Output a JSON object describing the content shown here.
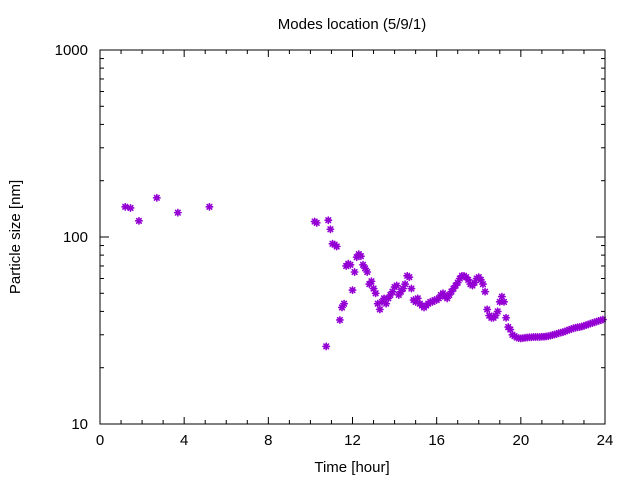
{
  "chart_data": {
    "type": "scatter",
    "title": "Modes location (5/9/1)",
    "xlabel": "Time [hour]",
    "ylabel": "Particle size [nm]",
    "xlim": [
      0,
      24
    ],
    "ylim": [
      10,
      1000
    ],
    "yscale": "log",
    "x_ticks": [
      0,
      4,
      8,
      12,
      16,
      20,
      24
    ],
    "x_tick_labels": [
      "0",
      "4",
      "8",
      "12",
      "16",
      "20",
      "24"
    ],
    "y_ticks": [
      10,
      100,
      1000
    ],
    "y_tick_labels": [
      "10",
      "100",
      "1000"
    ],
    "grid": false,
    "legend": "none",
    "marker": "asterisk",
    "color": "#9400d3",
    "series": [
      {
        "points": [
          [
            1.2,
            145
          ],
          [
            1.45,
            143
          ],
          [
            1.85,
            122
          ],
          [
            2.7,
            162
          ],
          [
            3.7,
            135
          ],
          [
            5.2,
            145
          ],
          [
            10.2,
            121
          ],
          [
            10.3,
            119
          ],
          [
            10.75,
            26
          ],
          [
            10.85,
            123
          ],
          [
            10.95,
            110
          ],
          [
            11.05,
            92
          ],
          [
            11.15,
            91
          ],
          [
            11.25,
            89
          ],
          [
            11.4,
            36
          ],
          [
            11.5,
            42
          ],
          [
            11.6,
            44
          ],
          [
            11.7,
            70
          ],
          [
            11.8,
            72
          ],
          [
            11.9,
            71
          ],
          [
            12.0,
            52
          ],
          [
            12.1,
            65
          ],
          [
            12.2,
            78
          ],
          [
            12.3,
            81
          ],
          [
            12.4,
            79
          ],
          [
            12.5,
            71
          ],
          [
            12.6,
            68
          ],
          [
            12.7,
            65
          ],
          [
            12.8,
            56
          ],
          [
            12.9,
            58
          ],
          [
            13.0,
            53
          ],
          [
            13.1,
            50
          ],
          [
            13.2,
            44
          ],
          [
            13.3,
            41
          ],
          [
            13.4,
            45
          ],
          [
            13.5,
            47
          ],
          [
            13.6,
            44
          ],
          [
            13.7,
            47
          ],
          [
            13.8,
            49
          ],
          [
            13.9,
            51
          ],
          [
            14.0,
            54
          ],
          [
            14.1,
            55
          ],
          [
            14.2,
            49
          ],
          [
            14.3,
            51
          ],
          [
            14.4,
            53
          ],
          [
            14.5,
            56
          ],
          [
            14.6,
            62
          ],
          [
            14.7,
            61
          ],
          [
            14.8,
            53
          ],
          [
            14.9,
            46
          ],
          [
            15.0,
            45
          ],
          [
            15.1,
            47
          ],
          [
            15.2,
            44
          ],
          [
            15.3,
            43
          ],
          [
            15.4,
            42
          ],
          [
            15.5,
            43
          ],
          [
            15.6,
            44
          ],
          [
            15.7,
            45
          ],
          [
            15.8,
            45
          ],
          [
            15.9,
            46
          ],
          [
            16.0,
            46
          ],
          [
            16.1,
            47
          ],
          [
            16.2,
            49
          ],
          [
            16.3,
            50
          ],
          [
            16.4,
            48
          ],
          [
            16.5,
            47
          ],
          [
            16.6,
            49
          ],
          [
            16.7,
            51
          ],
          [
            16.8,
            53
          ],
          [
            16.9,
            55
          ],
          [
            17.0,
            57
          ],
          [
            17.1,
            60
          ],
          [
            17.2,
            62
          ],
          [
            17.3,
            62
          ],
          [
            17.4,
            61
          ],
          [
            17.5,
            59
          ],
          [
            17.6,
            56
          ],
          [
            17.7,
            55
          ],
          [
            17.8,
            57
          ],
          [
            17.9,
            60
          ],
          [
            18.0,
            61
          ],
          [
            18.1,
            59
          ],
          [
            18.2,
            56
          ],
          [
            18.3,
            51
          ],
          [
            18.4,
            41
          ],
          [
            18.5,
            38
          ],
          [
            18.6,
            37
          ],
          [
            18.7,
            37
          ],
          [
            18.8,
            38
          ],
          [
            18.9,
            40
          ],
          [
            19.0,
            45
          ],
          [
            19.1,
            48
          ],
          [
            19.2,
            45
          ],
          [
            19.3,
            37
          ],
          [
            19.4,
            33
          ],
          [
            19.5,
            32
          ],
          [
            19.6,
            30
          ],
          [
            19.7,
            29.5
          ],
          [
            19.8,
            29
          ],
          [
            19.9,
            28.8
          ],
          [
            20.0,
            28.7
          ],
          [
            20.1,
            28.8
          ],
          [
            20.2,
            28.9
          ],
          [
            20.3,
            29
          ],
          [
            20.4,
            29.1
          ],
          [
            20.5,
            29.1
          ],
          [
            20.6,
            29.2
          ],
          [
            20.7,
            29.2
          ],
          [
            20.8,
            29.2
          ],
          [
            20.9,
            29.2
          ],
          [
            21.0,
            29.3
          ],
          [
            21.1,
            29.3
          ],
          [
            21.2,
            29.4
          ],
          [
            21.3,
            29.5
          ],
          [
            21.4,
            29.7
          ],
          [
            21.5,
            29.9
          ],
          [
            21.6,
            30.1
          ],
          [
            21.7,
            30.3
          ],
          [
            21.8,
            30.6
          ],
          [
            21.9,
            30.8
          ],
          [
            22.0,
            31.0
          ],
          [
            22.1,
            31.3
          ],
          [
            22.2,
            31.6
          ],
          [
            22.3,
            31.9
          ],
          [
            22.4,
            32.2
          ],
          [
            22.5,
            32.5
          ],
          [
            22.6,
            32.7
          ],
          [
            22.7,
            32.9
          ],
          [
            22.8,
            33.0
          ],
          [
            22.9,
            33.2
          ],
          [
            23.0,
            33.5
          ],
          [
            23.1,
            33.8
          ],
          [
            23.2,
            34.1
          ],
          [
            23.3,
            34.4
          ],
          [
            23.4,
            34.7
          ],
          [
            23.5,
            35.0
          ],
          [
            23.6,
            35.3
          ],
          [
            23.7,
            35.6
          ],
          [
            23.8,
            35.9
          ],
          [
            23.9,
            36.2
          ]
        ]
      }
    ]
  }
}
